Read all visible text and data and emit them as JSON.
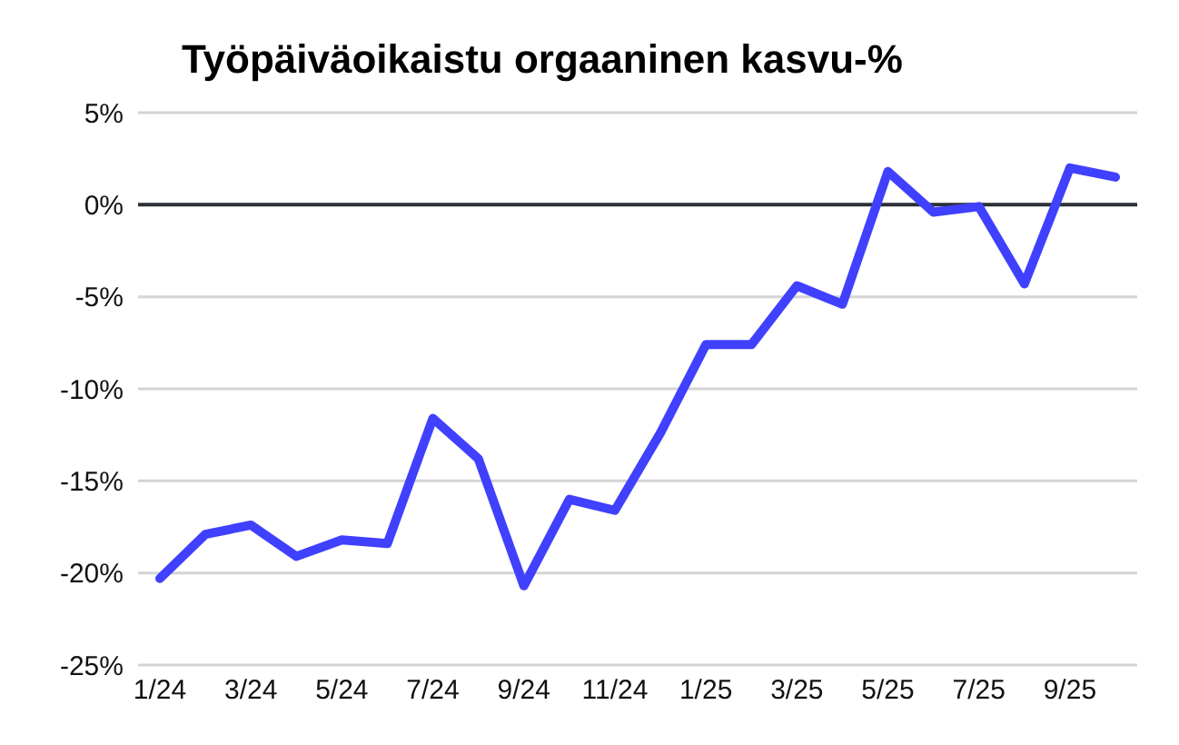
{
  "chart_data": {
    "type": "line",
    "title": "Työpäiväoikaistu orgaaninen kasvu-%",
    "categories": [
      "1/24",
      null,
      "3/24",
      null,
      "5/24",
      null,
      "7/24",
      null,
      "9/24",
      null,
      "11/24",
      null,
      "1/25",
      null,
      "3/25",
      null,
      "5/25",
      null,
      "7/25",
      null,
      "9/25",
      null
    ],
    "series": [
      {
        "color": "#4040ff",
        "values": [
          -20.3,
          -17.9,
          -17.4,
          -19.1,
          -18.2,
          -18.4,
          -11.6,
          -13.8,
          -20.7,
          -16.0,
          -16.6,
          -12.4,
          -7.6,
          -7.6,
          -4.4,
          -5.4,
          1.8,
          -0.4,
          -0.1,
          -4.3,
          2.0,
          1.5
        ]
      }
    ],
    "ylim": [
      -25,
      5
    ],
    "yticks": [
      {
        "value": -25,
        "label": "-25%"
      },
      {
        "value": -20,
        "label": "-20%"
      },
      {
        "value": -15,
        "label": "-15%"
      },
      {
        "value": -10,
        "label": "-10%"
      },
      {
        "value": -5,
        "label": "-5%"
      },
      {
        "value": 0,
        "label": "0%"
      },
      {
        "value": 5,
        "label": "5%"
      }
    ],
    "grid": "y",
    "marker": "none",
    "line_style": "solid",
    "ref_lines": [
      {
        "axis": "y",
        "value": 0,
        "color": "#2b2f36"
      }
    ]
  }
}
